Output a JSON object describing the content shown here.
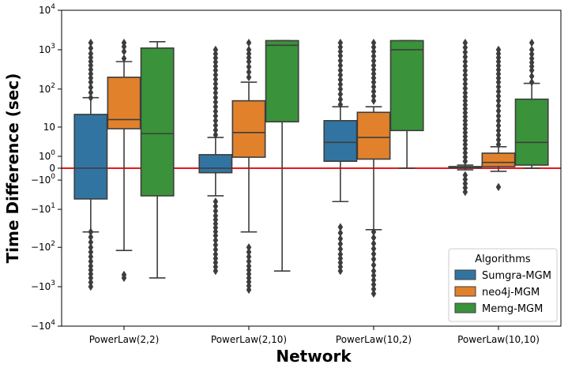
{
  "chart_data": {
    "type": "boxplot",
    "y_scale": "symlog",
    "xlabel": "Network",
    "ylabel": "Time Difference (sec)",
    "categories": [
      "PowerLaw(2,2)",
      "PowerLaw(2,10)",
      "PowerLaw(10,2)",
      "PowerLaw(10,10)"
    ],
    "y_ticks": [
      {
        "value": 10000,
        "label": "10",
        "sup": "4"
      },
      {
        "value": 1000,
        "label": "10",
        "sup": "3"
      },
      {
        "value": 100,
        "label": "10",
        "sup": "2"
      },
      {
        "value": 10,
        "label": "10",
        "sup": ""
      },
      {
        "value": 1,
        "label": "10",
        "sup": "0"
      },
      {
        "value": 0,
        "label": "0",
        "sup": ""
      },
      {
        "value": -1,
        "label": "−10",
        "sup": "0"
      },
      {
        "value": -10,
        "label": "−10",
        "sup": "1"
      },
      {
        "value": -100,
        "label": "−10",
        "sup": "2"
      },
      {
        "value": -1000,
        "label": "−10",
        "sup": "3"
      },
      {
        "value": -10000,
        "label": "−10",
        "sup": "4"
      }
    ],
    "ylim": [
      -10000,
      10000
    ],
    "reference_line": {
      "y": 0,
      "color": "#e8191c"
    },
    "legend": {
      "title": "Algorithms",
      "position": "lower right"
    },
    "series": [
      {
        "name": "Sumgra-MGM",
        "color": "#3274a1",
        "boxes": [
          {
            "whisker_low": -40,
            "q1": -5,
            "median": 0,
            "q3": 22,
            "whisker_high": 60,
            "outliers_low": [
              -40,
              -100,
              -300,
              -600,
              -1000
            ],
            "outliers_high": [
              60,
              150,
              400,
              800,
              1500
            ]
          },
          {
            "whisker_low": -4,
            "q1": -0.3,
            "median": 0,
            "q3": 1.2,
            "whisker_high": 5,
            "outliers_low": [
              -6,
              -15,
              -50,
              -150,
              -400
            ],
            "outliers_high": [
              6,
              20,
              80,
              300,
              1000
            ]
          },
          {
            "whisker_low": -6,
            "q1": 0.5,
            "median": 3.5,
            "q3": 15,
            "whisker_high": 35,
            "outliers_low": [
              -30,
              -60,
              -150,
              -400
            ],
            "outliers_high": [
              40,
              100,
              300,
              700,
              1500
            ]
          },
          {
            "whisker_low": -0.1,
            "q1": 0.02,
            "median": 0.05,
            "q3": 0.1,
            "whisker_high": 0.2,
            "outliers_low": [
              -0.5,
              -3
            ],
            "outliers_high": [
              0.5,
              3,
              15,
              80,
              500,
              1500
            ]
          }
        ]
      },
      {
        "name": "neo4j-MGM",
        "color": "#e1812c",
        "boxes": [
          {
            "whisker_low": -120,
            "q1": 9,
            "median": 16,
            "q3": 200,
            "whisker_high": 500,
            "outliers_low": [
              -500,
              -600
            ],
            "outliers_high": [
              600,
              900,
              1200,
              1500
            ]
          },
          {
            "whisker_low": -40,
            "q1": 0.9,
            "median": 7,
            "q3": 50,
            "whisker_high": 150,
            "outliers_low": [
              -100,
              -300,
              -1200
            ],
            "outliers_high": [
              200,
              500,
              1000,
              1500
            ]
          },
          {
            "whisker_low": -35,
            "q1": 0.7,
            "median": 5,
            "q3": 25,
            "whisker_high": 35,
            "outliers_low": [
              -40,
              -80,
              -200,
              -400,
              -1500
            ],
            "outliers_high": [
              50,
              150,
              400,
              900,
              1500
            ]
          },
          {
            "whisker_low": -0.2,
            "q1": 0.1,
            "median": 0.4,
            "q3": 1.4,
            "whisker_high": 2.5,
            "outliers_low": [
              -2
            ],
            "outliers_high": [
              3,
              8,
              20,
              50,
              150,
              500,
              1000
            ]
          }
        ]
      },
      {
        "name": "Memg-MGM",
        "color": "#3a923a",
        "boxes": [
          {
            "whisker_low": -600,
            "q1": -4,
            "median": 6.5,
            "q3": 1100,
            "whisker_high": 1600,
            "outliers_low": [],
            "outliers_high": []
          },
          {
            "whisker_low": -400,
            "q1": 14,
            "median": 1300,
            "q3": 1700,
            "whisker_high": 1700,
            "outliers_low": [],
            "outliers_high": []
          },
          {
            "whisker_low": 0,
            "q1": 8,
            "median": 1000,
            "q3": 1700,
            "whisker_high": 1700,
            "outliers_low": [],
            "outliers_high": []
          },
          {
            "whisker_low": 0,
            "q1": 0.2,
            "median": 3.5,
            "q3": 55,
            "whisker_high": 140,
            "outliers_low": [],
            "outliers_high": [
              150,
              300,
              600,
              1000,
              1500
            ]
          }
        ]
      }
    ]
  }
}
